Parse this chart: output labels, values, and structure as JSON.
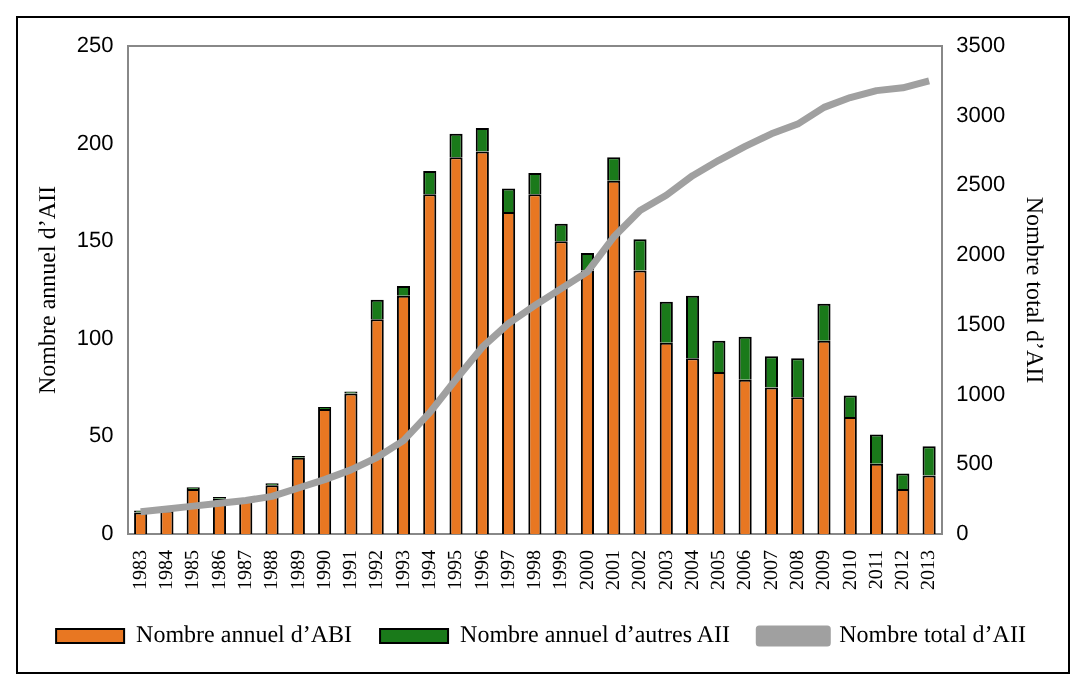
{
  "chart_data": {
    "type": "bar",
    "stacked": true,
    "ylabel": "Nombre annuel d’AII",
    "y2label": "Nombre total d’AII",
    "categories": [
      "1983",
      "1984",
      "1985",
      "1986",
      "1987",
      "1988",
      "1989",
      "1990",
      "1991",
      "1992",
      "1993",
      "1994",
      "1995",
      "1996",
      "1997",
      "1998",
      "1999",
      "2000",
      "2001",
      "2002",
      "2003",
      "2004",
      "2005",
      "2006",
      "2007",
      "2008",
      "2009",
      "2010",
      "2011",
      "2012",
      "2013"
    ],
    "series": [
      {
        "name": "Nombre annuel d’ABI",
        "color": "#e87722",
        "values": [
          11,
          12,
          23,
          18,
          17,
          25,
          39,
          64,
          72,
          110,
          122,
          174,
          193,
          196,
          165,
          174,
          150,
          135,
          181,
          135,
          98,
          90,
          83,
          79,
          75,
          70,
          99,
          60,
          36,
          23,
          30
        ]
      },
      {
        "name": "Nombre annuel d’autres AII",
        "color": "#1a7a1a",
        "values": [
          1,
          1,
          1,
          1,
          0,
          1,
          1,
          1,
          1,
          10,
          5,
          12,
          12,
          12,
          12,
          11,
          9,
          9,
          12,
          16,
          21,
          32,
          16,
          22,
          16,
          20,
          19,
          11,
          15,
          8,
          15
        ]
      },
      {
        "name": "Nombre total d’AII",
        "type": "line",
        "axis": "y2",
        "color": "#a0a0a0",
        "marker": "none",
        "values": [
          160,
          180,
          200,
          220,
          240,
          270,
          330,
          390,
          460,
          550,
          670,
          870,
          1110,
          1340,
          1510,
          1640,
          1760,
          1880,
          2130,
          2320,
          2430,
          2570,
          2680,
          2780,
          2870,
          2940,
          3060,
          3130,
          3180,
          3200,
          3250
        ]
      }
    ],
    "ylim": [
      0,
      250
    ],
    "yticks": [
      0,
      50,
      100,
      150,
      200,
      250
    ],
    "y2lim": [
      0,
      3500
    ],
    "y2ticks": [
      0,
      500,
      1000,
      1500,
      2000,
      2500,
      3000,
      3500
    ],
    "grid": false,
    "legend": "bottom"
  }
}
